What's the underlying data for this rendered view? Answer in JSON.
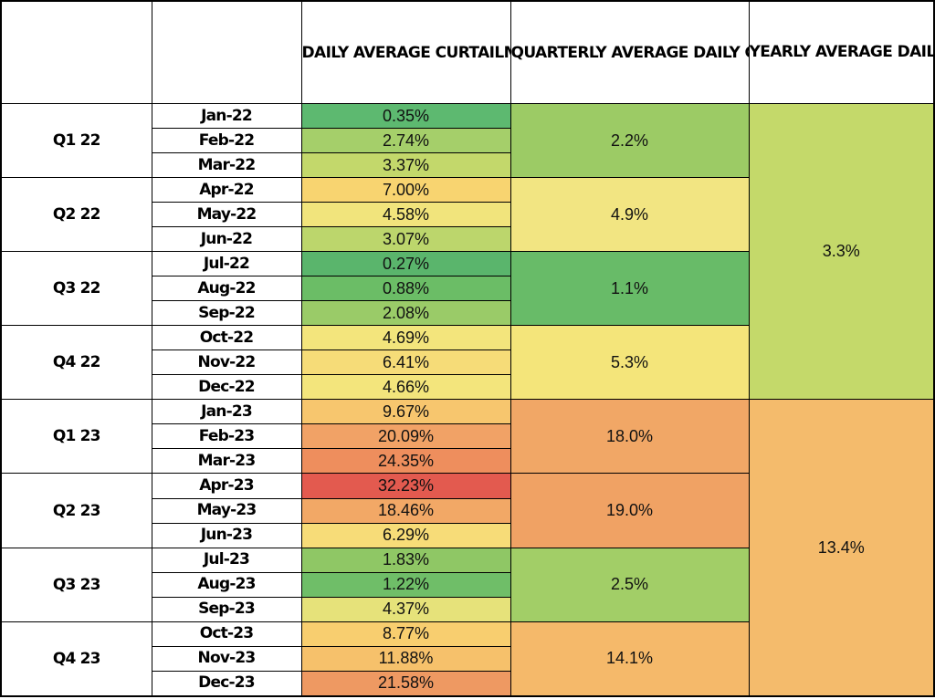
{
  "headers": {
    "daily": "DAILY AVERAGE CURTAILMENT (%)",
    "quarterly": "QUARTERLY AVERAGE DAILY CURTAILMENT (%)",
    "yearly": "YEARLY AVERAGE DAILY CURTAILMENT (%)"
  },
  "years": [
    {
      "yearly_avg": "3.3%",
      "color": "#c4d96a",
      "quarters": [
        {
          "label": "Q1 22",
          "avg": "2.2%",
          "color": "#9ccb65",
          "months": [
            {
              "month": "Jan-22",
              "value": "0.35%",
              "color": "#5db970"
            },
            {
              "month": "Feb-22",
              "value": "2.74%",
              "color": "#a5cf6a"
            },
            {
              "month": "Mar-22",
              "value": "3.37%",
              "color": "#c3d86b"
            }
          ]
        },
        {
          "label": "Q2 22",
          "avg": "4.9%",
          "color": "#f2e582",
          "months": [
            {
              "month": "Apr-22",
              "value": "7.00%",
              "color": "#f8d470"
            },
            {
              "month": "May-22",
              "value": "4.58%",
              "color": "#f1e47c"
            },
            {
              "month": "Jun-22",
              "value": "3.07%",
              "color": "#bcd66c"
            }
          ]
        },
        {
          "label": "Q3 22",
          "avg": "1.1%",
          "color": "#68bb68",
          "months": [
            {
              "month": "Jul-22",
              "value": "0.27%",
              "color": "#5ab56c"
            },
            {
              "month": "Aug-22",
              "value": "0.88%",
              "color": "#6bbd66"
            },
            {
              "month": "Sep-22",
              "value": "2.08%",
              "color": "#9acb68"
            }
          ]
        },
        {
          "label": "Q4 22",
          "avg": "5.3%",
          "color": "#f4e57a",
          "months": [
            {
              "month": "Oct-22",
              "value": "4.69%",
              "color": "#f3e57c"
            },
            {
              "month": "Nov-22",
              "value": "6.41%",
              "color": "#f6dc78"
            },
            {
              "month": "Dec-22",
              "value": "4.66%",
              "color": "#f3e57c"
            }
          ]
        }
      ]
    },
    {
      "yearly_avg": "13.4%",
      "color": "#f4bb6c",
      "quarters": [
        {
          "label": "Q1 23",
          "avg": "18.0%",
          "color": "#f1a766",
          "months": [
            {
              "month": "Jan-23",
              "value": "9.67%",
              "color": "#f7c66e"
            },
            {
              "month": "Feb-23",
              "value": "20.09%",
              "color": "#f1a266"
            },
            {
              "month": "Mar-23",
              "value": "24.35%",
              "color": "#ee8e5d"
            }
          ]
        },
        {
          "label": "Q2 23",
          "avg": "19.0%",
          "color": "#f0a264",
          "months": [
            {
              "month": "Apr-23",
              "value": "32.23%",
              "color": "#e35a4f"
            },
            {
              "month": "May-23",
              "value": "18.46%",
              "color": "#f2a866"
            },
            {
              "month": "Jun-23",
              "value": "6.29%",
              "color": "#f7dc78"
            }
          ]
        },
        {
          "label": "Q3 23",
          "avg": "2.5%",
          "color": "#a2ce67",
          "months": [
            {
              "month": "Jul-23",
              "value": "1.83%",
              "color": "#8fc765"
            },
            {
              "month": "Aug-23",
              "value": "1.22%",
              "color": "#6fbe68"
            },
            {
              "month": "Sep-23",
              "value": "4.37%",
              "color": "#e6e27a"
            }
          ]
        },
        {
          "label": "Q4 23",
          "avg": "14.1%",
          "color": "#f5b96a",
          "months": [
            {
              "month": "Oct-23",
              "value": "8.77%",
              "color": "#f8ce6f"
            },
            {
              "month": "Nov-23",
              "value": "11.88%",
              "color": "#f6c16b"
            },
            {
              "month": "Dec-23",
              "value": "21.58%",
              "color": "#ee9962"
            }
          ]
        }
      ]
    }
  ]
}
